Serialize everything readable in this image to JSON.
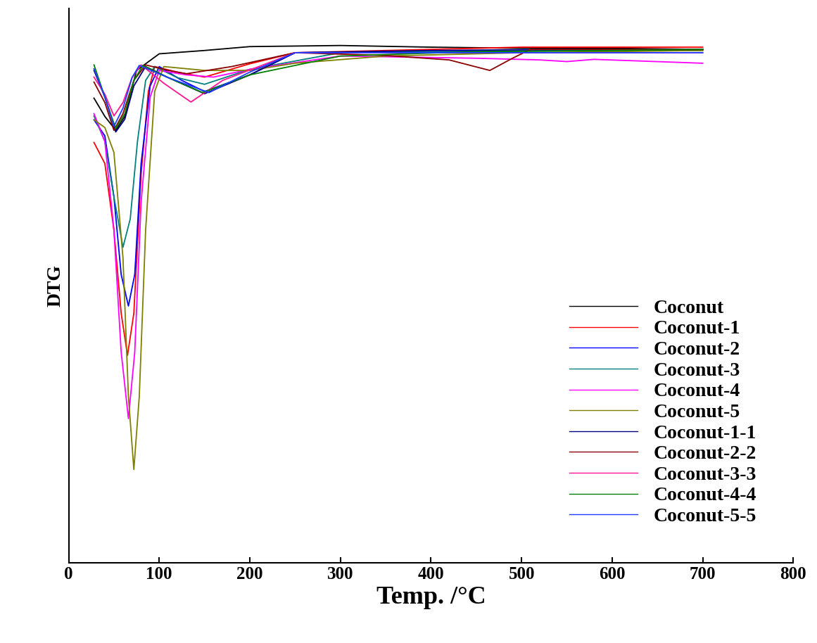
{
  "chart_data": {
    "type": "line",
    "x_label": "Temp. /°C",
    "y_label": "DTG",
    "xlim": [
      0,
      800
    ],
    "xticks": [
      0,
      100,
      200,
      300,
      400,
      500,
      600,
      700,
      800
    ],
    "ylim": [
      0,
      100
    ],
    "yticks": [],
    "tick_labels": "x",
    "grid": false,
    "legend": "lower right",
    "series": [
      {
        "name": "Coconut",
        "color": "#000000",
        "x": [
          28,
          40,
          52,
          62,
          75,
          100,
          150,
          200,
          300,
          400,
          500,
          600,
          700
        ],
        "values": [
          83.8,
          80.5,
          78.0,
          80.5,
          88.8,
          91.8,
          92.4,
          93.1,
          93.3,
          93.0,
          92.8,
          92.8,
          92.6
        ]
      },
      {
        "name": "Coconut-1",
        "color": "#ff0000",
        "x": [
          28,
          40,
          50,
          58,
          65,
          72,
          80,
          88,
          95,
          120,
          150,
          200,
          250,
          350,
          500,
          700
        ],
        "values": [
          75.8,
          72.0,
          60.0,
          45.0,
          37.4,
          45.0,
          70.0,
          85.0,
          89.5,
          88.5,
          87.6,
          90.0,
          92.0,
          92.4,
          93.0,
          93.0
        ]
      },
      {
        "name": "Coconut-2",
        "color": "#0000ff",
        "x": [
          28,
          40,
          50,
          58,
          66,
          73,
          80,
          90,
          100,
          125,
          150,
          200,
          250,
          400,
          550,
          700
        ],
        "values": [
          79.9,
          77.0,
          66.0,
          52.0,
          46.3,
          52.0,
          72.0,
          86.0,
          89.5,
          87.0,
          85.0,
          88.0,
          92.0,
          92.2,
          92.4,
          92.6
        ]
      },
      {
        "name": "Coconut-3",
        "color": "#008080",
        "x": [
          28,
          40,
          50,
          60,
          68,
          76,
          85,
          95,
          120,
          150,
          200,
          300,
          450,
          600,
          700
        ],
        "values": [
          80.6,
          76.0,
          66.0,
          56.9,
          62.0,
          76.0,
          87.0,
          89.5,
          87.5,
          86.3,
          89.0,
          92.0,
          92.2,
          92.4,
          92.4
        ]
      },
      {
        "name": "Coconut-4",
        "color": "#ff00ff",
        "x": [
          28,
          40,
          50,
          58,
          66,
          73,
          80,
          90,
          100,
          130,
          160,
          200,
          300,
          450,
          520,
          550,
          580,
          700
        ],
        "values": [
          81.0,
          76.0,
          60.0,
          38.0,
          26.0,
          38.0,
          65.0,
          84.0,
          88.8,
          88.0,
          87.6,
          89.0,
          91.4,
          91.0,
          90.7,
          90.4,
          90.8,
          90.1
        ]
      },
      {
        "name": "Coconut-5",
        "color": "#808000",
        "x": [
          28,
          40,
          50,
          60,
          66,
          72,
          78,
          85,
          95,
          105,
          150,
          200,
          250,
          350,
          500,
          700
        ],
        "values": [
          79.9,
          78.5,
          74.0,
          55.0,
          30.0,
          16.8,
          30.0,
          60.0,
          85.0,
          89.5,
          88.8,
          88.8,
          90.1,
          91.4,
          92.0,
          92.4
        ]
      },
      {
        "name": "Coconut-1-1",
        "color": "#000080",
        "x": [
          28,
          40,
          52,
          62,
          72,
          85,
          110,
          150,
          200,
          250,
          400,
          550,
          700
        ],
        "values": [
          88.8,
          84.0,
          77.7,
          80.0,
          86.0,
          89.5,
          87.5,
          84.6,
          88.0,
          92.0,
          92.4,
          92.6,
          92.6
        ]
      },
      {
        "name": "Coconut-2-2",
        "color": "#8b0000",
        "x": [
          28,
          40,
          50,
          60,
          72,
          85,
          110,
          130,
          180,
          250,
          350,
          420,
          465,
          490,
          510,
          600,
          700
        ],
        "values": [
          86.7,
          83.0,
          78.0,
          81.0,
          87.0,
          89.8,
          88.8,
          88.2,
          89.5,
          92.0,
          91.5,
          90.7,
          88.8,
          91.0,
          92.6,
          92.6,
          92.6
        ]
      },
      {
        "name": "Coconut-3-3",
        "color": "#ff1493",
        "x": [
          28,
          40,
          50,
          60,
          70,
          80,
          105,
          135,
          170,
          250,
          400,
          550,
          700
        ],
        "values": [
          87.6,
          84.5,
          80.6,
          83.0,
          87.5,
          89.8,
          86.5,
          83.1,
          87.0,
          92.0,
          92.0,
          92.0,
          92.0
        ]
      },
      {
        "name": "Coconut-4-4",
        "color": "#008000",
        "x": [
          28,
          40,
          52,
          62,
          72,
          82,
          110,
          148,
          200,
          300,
          450,
          600,
          700
        ],
        "values": [
          89.8,
          84.0,
          78.3,
          81.0,
          87.0,
          89.7,
          87.5,
          84.8,
          88.0,
          91.4,
          92.2,
          92.4,
          92.6
        ]
      },
      {
        "name": "Coconut-5-5",
        "color": "#1e3cff",
        "x": [
          28,
          40,
          50,
          60,
          70,
          78,
          110,
          155,
          200,
          250,
          400,
          550,
          700
        ],
        "values": [
          89.1,
          84.0,
          78.7,
          82.0,
          87.5,
          89.7,
          87.5,
          84.8,
          88.5,
          92.0,
          92.0,
          92.0,
          92.0
        ]
      }
    ]
  }
}
